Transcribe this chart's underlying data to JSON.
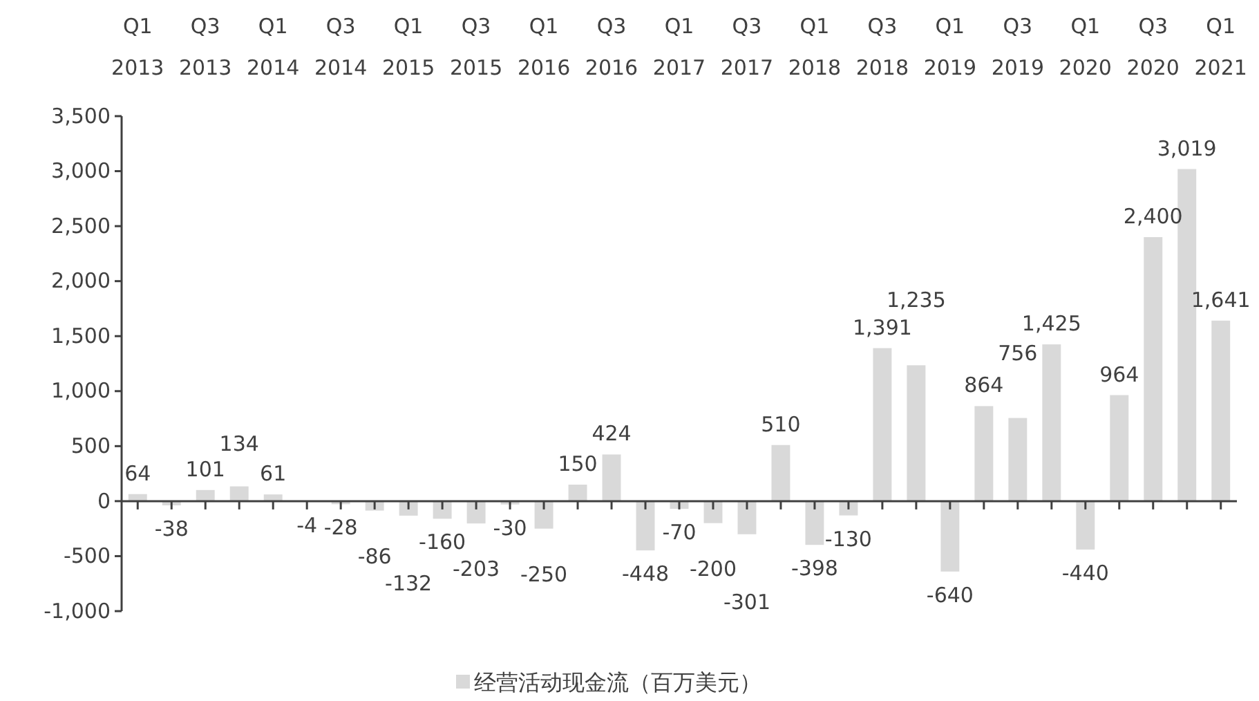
{
  "chart_data": {
    "type": "bar",
    "categories": [
      "Q1 2013",
      null,
      "Q3 2013",
      null,
      "Q1 2014",
      null,
      "Q3 2014",
      null,
      "Q1 2015",
      null,
      "Q3 2015",
      null,
      "Q1 2016",
      null,
      "Q3 2016",
      null,
      "Q1 2017",
      null,
      "Q3 2017",
      null,
      "Q1 2018",
      null,
      "Q3 2018",
      null,
      "Q1 2019",
      null,
      "Q3 2019",
      null,
      "Q1 2020",
      null,
      "Q3 2020",
      null,
      "Q1 2021"
    ],
    "series": [
      {
        "name": "经营活动现金流（百万美元）",
        "color": "#d9d9d9",
        "values": [
          64,
          -38,
          101,
          134,
          61,
          -4,
          -28,
          -86,
          -132,
          -160,
          -203,
          -30,
          -250,
          150,
          424,
          -448,
          -70,
          -200,
          -301,
          510,
          -398,
          -130,
          1391,
          1235,
          -640,
          864,
          756,
          1425,
          -440,
          964,
          2400,
          3019,
          1641
        ],
        "value_labels": [
          "64",
          "-38",
          "101",
          "134",
          "61",
          "-4",
          "-28",
          "-86",
          "-132",
          "-160",
          "-203",
          "-30",
          "-250",
          "150",
          "424",
          "-448",
          "-70",
          "-200",
          "-301",
          "510",
          "-398",
          "-130",
          "1,391",
          "1,235",
          "-640",
          "864",
          "756",
          "1,425",
          "-440",
          "964",
          "2,400",
          "3,019",
          "1,641"
        ]
      }
    ],
    "ylim": [
      -1000,
      3500
    ],
    "yticks": [
      {
        "value": -1000,
        "label": "-1,000"
      },
      -500,
      0,
      500,
      {
        "value": 1000,
        "label": "1,000"
      },
      {
        "value": 1500,
        "label": "1,500"
      },
      {
        "value": 2000,
        "label": "2,000"
      },
      {
        "value": 2500,
        "label": "2,500"
      },
      {
        "value": 3000,
        "label": "3,000"
      },
      {
        "value": 3500,
        "label": "3,500"
      }
    ],
    "legend": "bottom"
  }
}
